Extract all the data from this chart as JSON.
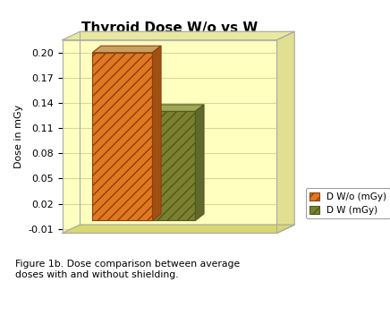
{
  "title": "Thyroid Dose W/o vs W",
  "ylabel": "Dose in mGy",
  "values": [
    0.2,
    0.13
  ],
  "legend_labels": [
    "D W/o (mGy)",
    "D W (mGy)"
  ],
  "bar_colors": [
    "#E07820",
    "#7A8030"
  ],
  "bar_edge_colors": [
    "#8B4010",
    "#505A18"
  ],
  "bar_top_colors": [
    "#C8A060",
    "#A0A858"
  ],
  "bar_side_colors": [
    "#A05010",
    "#606830"
  ],
  "yticks": [
    -0.01,
    0.02,
    0.05,
    0.08,
    0.11,
    0.14,
    0.17,
    0.2
  ],
  "ylim": [
    -0.015,
    0.215
  ],
  "plot_bg_color": "#FFFFC0",
  "wall_side_color": "#E8E890",
  "wall_bottom_color": "#E0E080",
  "grid_color": "#D8D898",
  "caption": "Figure 1b. Dose comparison between average\ndoses with and without shielding.",
  "title_fontsize": 11,
  "axis_fontsize": 8,
  "tick_fontsize": 8,
  "legend_fontsize": 7.5,
  "hatch": "///",
  "hatch2": "///"
}
